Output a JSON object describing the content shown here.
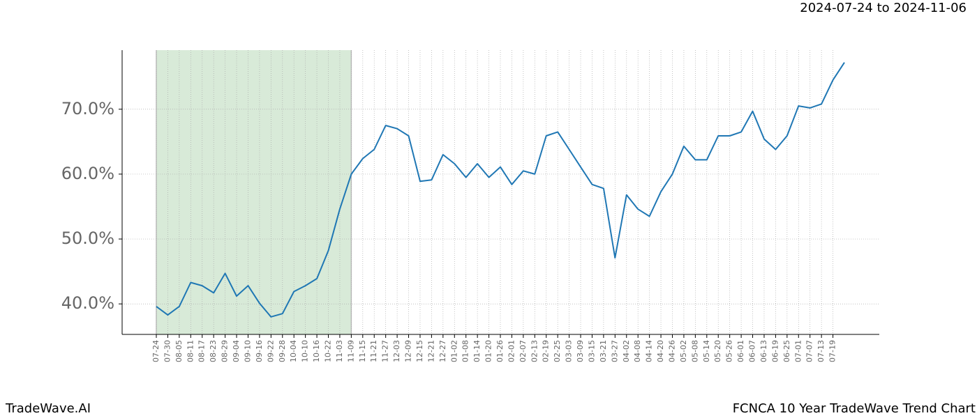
{
  "chart_data": {
    "type": "line",
    "subtitle": "2024-07-24 to 2024-11-06",
    "footer_left": "TradeWave.AI",
    "footer_right": "FCNCA 10 Year TradeWave Trend Chart",
    "categories": [
      "07-24",
      "07-30",
      "08-05",
      "08-11",
      "08-17",
      "08-23",
      "08-29",
      "09-04",
      "09-10",
      "09-16",
      "09-22",
      "09-28",
      "10-04",
      "10-10",
      "10-16",
      "10-22",
      "11-03",
      "11-09",
      "11-15",
      "11-21",
      "11-27",
      "12-03",
      "12-09",
      "12-15",
      "12-21",
      "12-27",
      "01-02",
      "01-08",
      "01-14",
      "01-20",
      "01-26",
      "02-01",
      "02-07",
      "02-13",
      "02-19",
      "02-25",
      "03-03",
      "03-09",
      "03-15",
      "03-21",
      "03-27",
      "04-02",
      "04-08",
      "04-14",
      "04-20",
      "04-26",
      "05-02",
      "05-08",
      "05-14",
      "05-20",
      "05-26",
      "06-01",
      "06-07",
      "06-13",
      "06-19",
      "06-25",
      "07-01",
      "07-07",
      "07-13",
      "07-19",
      null
    ],
    "series": [
      {
        "color": "#1f77b4",
        "values": [
          39.6,
          38.3,
          39.6,
          43.3,
          42.8,
          41.7,
          44.7,
          41.2,
          42.8,
          40.1,
          38.0,
          38.5,
          41.9,
          42.8,
          43.9,
          48.2,
          54.6,
          60.0,
          62.4,
          63.8,
          67.5,
          67.0,
          65.9,
          58.9,
          59.1,
          63.0,
          61.6,
          59.5,
          61.6,
          59.5,
          61.1,
          58.4,
          60.5,
          60.0,
          65.9,
          66.5,
          63.8,
          61.1,
          58.4,
          57.8,
          47.1,
          56.8,
          54.6,
          53.5,
          57.3,
          60.0,
          64.3,
          62.2,
          62.2,
          65.9,
          65.9,
          66.5,
          69.7,
          65.4,
          63.8,
          65.9,
          70.5,
          70.2,
          70.8,
          74.5,
          77.2
        ]
      }
    ],
    "highlight_range": [
      0,
      17
    ],
    "highlight_color": "#d8ead8",
    "ylim": [
      35.3,
      79.1
    ],
    "yticks": [
      {
        "value": 40,
        "label": "40.0%"
      },
      {
        "value": 50,
        "label": "50.0%"
      },
      {
        "value": 60,
        "label": "60.0%"
      },
      {
        "value": 70,
        "label": "70.0%"
      }
    ],
    "grid": true
  }
}
